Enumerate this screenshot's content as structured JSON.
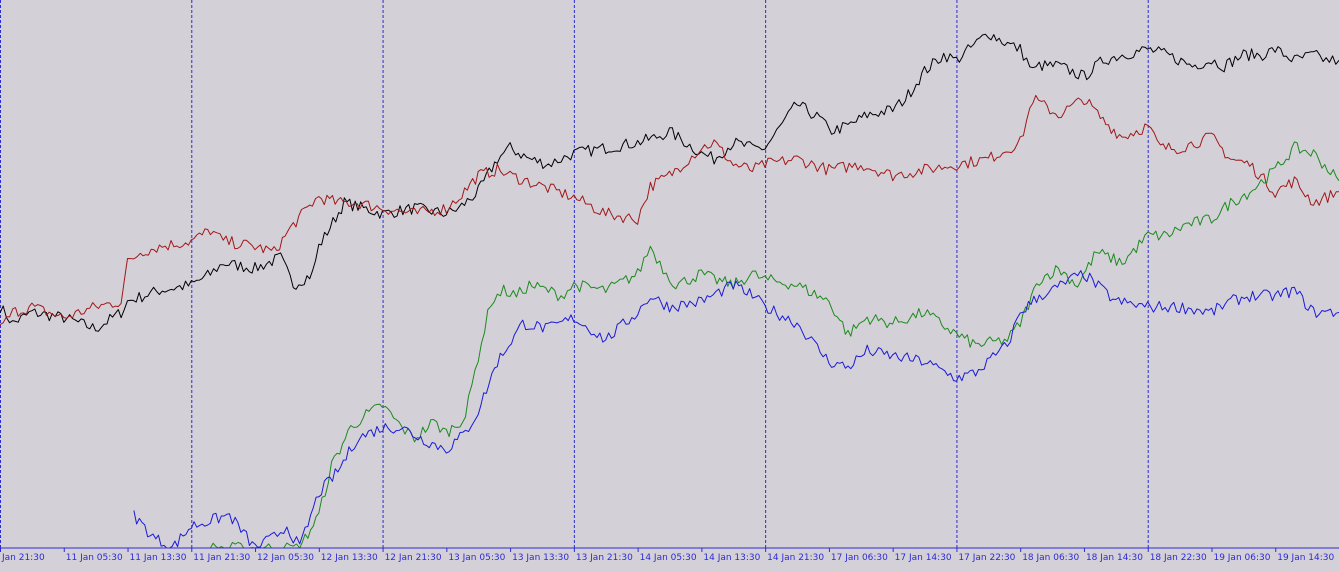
{
  "chart_data": {
    "type": "line",
    "background_color": "#d4d0d8",
    "axis_color": "#2b2bd6",
    "grid": "vertical dashed at each session start",
    "x_tick_labels": [
      "Jan 21:30",
      "11 Jan 05:30",
      "11 Jan 13:30",
      "11 Jan 21:30",
      "12 Jan 05:30",
      "12 Jan 13:30",
      "12 Jan 21:30",
      "13 Jan 05:30",
      "13 Jan 13:30",
      "13 Jan 21:30",
      "14 Jan 05:30",
      "14 Jan 13:30",
      "14 Jan 21:30",
      "17 Jan 06:30",
      "17 Jan 14:30",
      "17 Jan 22:30",
      "18 Jan 06:30",
      "18 Jan 14:30",
      "18 Jan 22:30",
      "19 Jan 06:30",
      "19 Jan 14:30",
      "19 J"
    ],
    "session_boundaries": [
      "10 Jan 21:30",
      "11 Jan 21:30",
      "12 Jan 21:30",
      "13 Jan 21:30",
      "14 Jan 21:30",
      "17 Jan 22:30",
      "18 Jan 22:30"
    ],
    "x_range": [
      0,
      21
    ],
    "y_range": [
      0,
      100
    ],
    "series": [
      {
        "color": "#000000",
        "x": [
          0,
          0.2,
          0.5,
          1,
          1.5,
          1.9,
          2,
          2.5,
          3,
          3.3,
          3.5,
          4,
          4.4,
          4.6,
          4.9,
          5,
          5.4,
          5.7,
          6,
          6.5,
          7,
          7.2,
          7.5,
          7.8,
          8,
          8.3,
          8.6,
          8.8,
          9,
          9.5,
          10,
          10.3,
          10.5,
          11,
          11.2,
          11.5,
          11.8,
          12,
          12.5,
          12.9,
          13,
          13.3,
          13.6,
          14,
          14.2,
          14.5,
          14.8,
          15,
          15.5,
          15.8,
          16,
          16.2,
          16.3,
          16.6,
          17,
          17.3,
          17.6,
          18,
          18.3,
          18.7,
          19,
          19.2,
          19.5,
          19.8,
          20,
          20.3,
          20.6,
          20.8,
          21
        ],
        "values": [
          44,
          41,
          43,
          42,
          40,
          43,
          45,
          47,
          48,
          50,
          52,
          51,
          53,
          48,
          50,
          55,
          63,
          62,
          61,
          62,
          61,
          62,
          65,
          71,
          73,
          71,
          70,
          71,
          72,
          73,
          74,
          75,
          76,
          72,
          71,
          74,
          73,
          73,
          81,
          78,
          76,
          77,
          79,
          80,
          82,
          87,
          90,
          89,
          94,
          92,
          91,
          87,
          88,
          88,
          86,
          89,
          90,
          91,
          90,
          88,
          89,
          88,
          90,
          90,
          91,
          89,
          90,
          89,
          89
        ]
      },
      {
        "color": "#a01818",
        "x": [
          0,
          0.2,
          0.5,
          1,
          1.5,
          1.9,
          2,
          2.2,
          2.5,
          3,
          3.3,
          3.5,
          4,
          4.3,
          4.6,
          4.9,
          5,
          5.3,
          5.6,
          6,
          6.5,
          7,
          7.2,
          7.5,
          7.8,
          8,
          8.5,
          9,
          9.5,
          10,
          10.2,
          10.5,
          10.8,
          11,
          11.2,
          11.5,
          11.8,
          12,
          12.5,
          13,
          13.5,
          14,
          14.5,
          15,
          15.5,
          16,
          16.2,
          16.6,
          17,
          17.3,
          17.6,
          18,
          18.2,
          18.5,
          19,
          19.3,
          19.6,
          20,
          20.3,
          20.6,
          21
        ],
        "values": [
          40,
          43,
          44,
          42,
          44,
          45,
          52,
          54,
          55,
          56,
          58,
          56,
          55,
          54,
          59,
          63,
          64,
          63,
          63,
          62,
          61,
          62,
          64,
          68,
          69,
          68,
          66,
          64,
          61,
          60,
          66,
          68,
          71,
          73,
          74,
          70,
          69,
          70,
          71,
          69,
          70,
          68,
          69,
          70,
          71,
          74,
          82,
          79,
          82,
          78,
          75,
          77,
          73,
          73,
          75,
          71,
          70,
          65,
          67,
          63,
          65
        ]
      },
      {
        "color": "#1c8a1c",
        "x": [
          3.3,
          3.6,
          4,
          4.3,
          4.5,
          4.7,
          5,
          5.2,
          5.5,
          5.7,
          6,
          6.3,
          6.5,
          6.8,
          7,
          7.3,
          7.5,
          7.7,
          7.9,
          8.1,
          8.3,
          8.6,
          8.8,
          9,
          9.5,
          10,
          10.2,
          10.4,
          10.6,
          11,
          11.2,
          11.5,
          11.8,
          12,
          12.5,
          13,
          13.3,
          13.6,
          14,
          14.5,
          15,
          15.3,
          15.8,
          16,
          16.3,
          16.6,
          16.9,
          17.2,
          17.6,
          18,
          18.3,
          18.6,
          19,
          19.3,
          19.6,
          20,
          20.3,
          20.6,
          21
        ],
        "values": [
          0,
          0,
          0,
          0,
          0,
          0,
          6,
          15,
          22,
          24,
          26,
          22,
          20,
          23,
          21,
          24,
          35,
          45,
          47,
          46,
          48,
          47,
          46,
          48,
          47,
          50,
          55,
          51,
          48,
          50,
          49,
          48,
          50,
          49,
          48,
          45,
          39,
          42,
          41,
          43,
          39,
          37,
          38,
          41,
          49,
          51,
          48,
          54,
          52,
          57,
          57,
          59,
          60,
          63,
          65,
          69,
          73,
          72,
          67
        ]
      },
      {
        "color": "#1a1ad8",
        "x": [
          2.1,
          2.4,
          2.7,
          3,
          3.3,
          3.6,
          4,
          4.3,
          4.5,
          4.7,
          5,
          5.3,
          5.6,
          6,
          6.3,
          6.6,
          7,
          7.3,
          7.5,
          7.8,
          8.2,
          8.6,
          9,
          9.5,
          10,
          10.2,
          10.5,
          11,
          11.5,
          11.8,
          12,
          12.5,
          13,
          13.3,
          13.6,
          14,
          14.5,
          15,
          15.3,
          15.8,
          16,
          16.3,
          16.5,
          16.8,
          17,
          17.5,
          18,
          18.5,
          19,
          19.3,
          19.6,
          20,
          20.3,
          20.6,
          21
        ],
        "values": [
          6,
          2,
          0,
          4,
          5,
          6,
          0,
          2,
          4,
          0,
          10,
          14,
          20,
          22,
          22,
          20,
          18,
          21,
          25,
          34,
          41,
          40,
          42,
          38,
          43,
          46,
          44,
          45,
          48,
          46,
          44,
          41,
          34,
          33,
          36,
          35,
          34,
          31,
          32,
          37,
          43,
          46,
          47,
          49,
          50,
          45,
          44,
          44,
          43,
          45,
          46,
          46,
          47,
          43,
          43
        ]
      }
    ]
  }
}
